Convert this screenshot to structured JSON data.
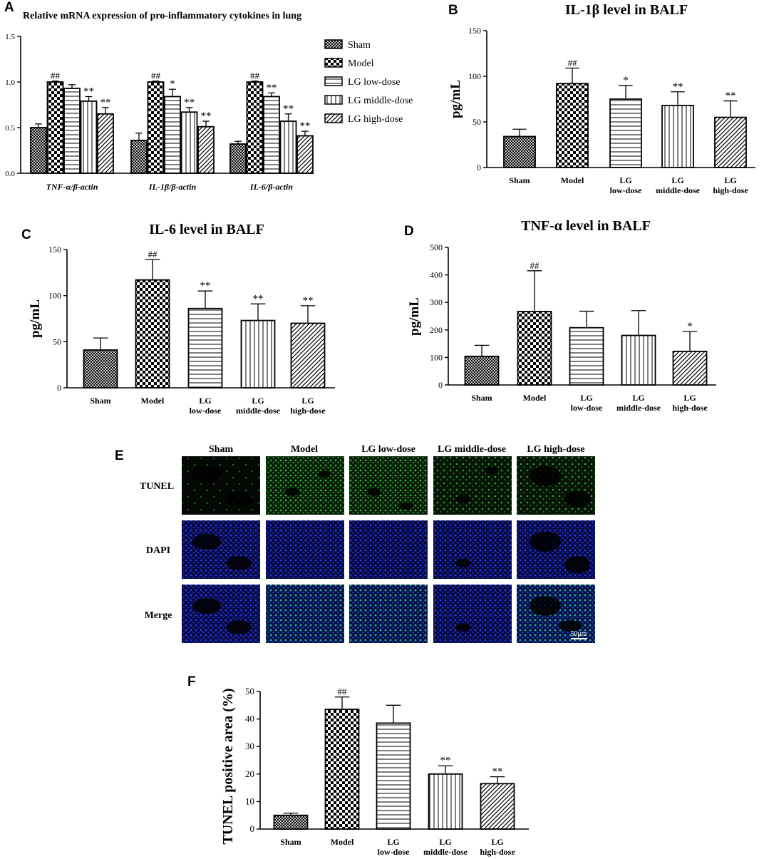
{
  "panel_letters": {
    "a": "A",
    "b": "B",
    "c": "C",
    "d": "D",
    "e": "E",
    "f": "F"
  },
  "colors": {
    "axis": "#000000",
    "bar_fill": "#ffffff",
    "tunel": "#1ea01e",
    "dapi": "#1a2ad8",
    "merge_cells": "#2aa0a0",
    "background": "#ffffff"
  },
  "patterns": {
    "Sham": "crosshatch",
    "Model": "checkerboard",
    "LG low-dose": "horizontal-lines",
    "LG middle-dose": "vertical-lines",
    "LG high-dose": "diagonal-lines"
  },
  "chart_data": [
    {
      "id": "A",
      "type": "bar",
      "title": "Relative mRNA expression of pro-inflammatory cytokines in lung",
      "categories": [
        "TNF-α/β-actin",
        "IL-1β/β-actin",
        "IL-6/β-actin"
      ],
      "series": [
        {
          "name": "Sham",
          "values": [
            0.5,
            0.36,
            0.32
          ],
          "errors": [
            0.04,
            0.08,
            0.03
          ],
          "marks": [
            "",
            "",
            ""
          ]
        },
        {
          "name": "Model",
          "values": [
            1.0,
            1.0,
            1.0
          ],
          "errors": [
            0.01,
            0.01,
            0.01
          ],
          "marks": [
            "##",
            "##",
            "##"
          ]
        },
        {
          "name": "LG low-dose",
          "values": [
            0.93,
            0.84,
            0.84
          ],
          "errors": [
            0.04,
            0.08,
            0.04
          ],
          "marks": [
            "",
            "*",
            "**"
          ]
        },
        {
          "name": "LG middle-dose",
          "values": [
            0.79,
            0.67,
            0.57
          ],
          "errors": [
            0.05,
            0.05,
            0.08
          ],
          "marks": [
            "**",
            "**",
            "**"
          ]
        },
        {
          "name": "LG high-dose",
          "values": [
            0.65,
            0.51,
            0.41
          ],
          "errors": [
            0.07,
            0.06,
            0.05
          ],
          "marks": [
            "**",
            "**",
            "**"
          ]
        }
      ],
      "ylim": [
        0,
        1.5
      ],
      "yticks": [
        "0.0",
        "0.5",
        "1.0",
        "1.5"
      ],
      "legend": "right"
    },
    {
      "id": "B",
      "type": "bar",
      "title": "IL-1β level in BALF",
      "ylabel": "pg/mL",
      "categories": [
        "Sham",
        "Model",
        "LG low-dose",
        "LG middle-dose",
        "LG high-dose"
      ],
      "category_lines": [
        [
          "Sham"
        ],
        [
          "Model"
        ],
        [
          "LG",
          "low-dose"
        ],
        [
          "LG",
          "middle-dose"
        ],
        [
          "LG",
          "high-dose"
        ]
      ],
      "values": [
        34,
        92,
        75,
        68,
        55
      ],
      "errors": [
        8,
        17,
        15,
        15,
        18
      ],
      "marks": [
        "",
        "##",
        "*",
        "**",
        "**"
      ],
      "ylim": [
        0,
        150
      ],
      "yticks": [
        "0",
        "50",
        "100",
        "150"
      ]
    },
    {
      "id": "C",
      "type": "bar",
      "title": "IL-6 level in BALF",
      "ylabel": "pg/mL",
      "categories": [
        "Sham",
        "Model",
        "LG low-dose",
        "LG middle-dose",
        "LG high-dose"
      ],
      "category_lines": [
        [
          "Sham"
        ],
        [
          "Model"
        ],
        [
          "LG",
          "low-dose"
        ],
        [
          "LG",
          "middle-dose"
        ],
        [
          "LG",
          "high-dose"
        ]
      ],
      "values": [
        41,
        117,
        86,
        73,
        70
      ],
      "errors": [
        13,
        22,
        19,
        18,
        19
      ],
      "marks": [
        "",
        "##",
        "**",
        "**",
        "**"
      ],
      "ylim": [
        0,
        150
      ],
      "yticks": [
        "0",
        "50",
        "100",
        "150"
      ]
    },
    {
      "id": "D",
      "type": "bar",
      "title": "TNF-α level in BALF",
      "ylabel": "pg/mL",
      "categories": [
        "Sham",
        "Model",
        "LG low-dose",
        "LG middle-dose",
        "LG high-dose"
      ],
      "category_lines": [
        [
          "Sham"
        ],
        [
          "Model"
        ],
        [
          "LG",
          "low-dose"
        ],
        [
          "LG",
          "middle-dose"
        ],
        [
          "LG",
          "high-dose"
        ]
      ],
      "values": [
        104,
        267,
        208,
        180,
        122
      ],
      "errors": [
        40,
        148,
        60,
        90,
        72
      ],
      "marks": [
        "",
        "##",
        "",
        "",
        "*"
      ],
      "ylim": [
        0,
        500
      ],
      "yticks": [
        "0",
        "100",
        "200",
        "300",
        "400",
        "500"
      ]
    },
    {
      "id": "F",
      "type": "bar",
      "title": "",
      "ylabel": "TUNEL positive area (%)",
      "categories": [
        "Sham",
        "Model",
        "LG low-dose",
        "LG middle-dose",
        "LG high-dose"
      ],
      "category_lines": [
        [
          "Sham"
        ],
        [
          "Model"
        ],
        [
          "LG",
          "low-dose"
        ],
        [
          "LG",
          "middle-dose"
        ],
        [
          "LG",
          "high-dose"
        ]
      ],
      "values": [
        5,
        43.5,
        38.5,
        20,
        16.5
      ],
      "errors": [
        0.8,
        4.5,
        6.5,
        3,
        2.5
      ],
      "marks": [
        "",
        "##",
        "",
        "**",
        "**"
      ],
      "ylim": [
        0,
        50
      ],
      "yticks": [
        "0",
        "10",
        "20",
        "30",
        "40",
        "50"
      ]
    }
  ],
  "microscopy": {
    "columns": [
      "Sham",
      "Model",
      "LG low-dose",
      "LG middle-dose",
      "LG high-dose"
    ],
    "rows": [
      "TUNEL",
      "DAPI",
      "Merge"
    ],
    "scale_bar": "50μm"
  }
}
